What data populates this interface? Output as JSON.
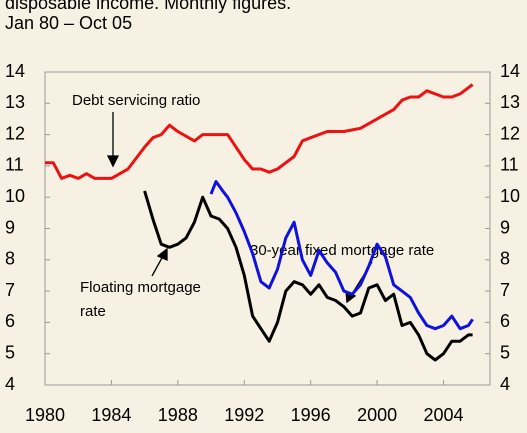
{
  "chart_data": {
    "type": "line",
    "subtitle": "disposable income. Monthly figures.",
    "date_range": "Jan 80 – Oct 05",
    "annotations": [
      "Debt servicing ratio",
      "30-year fixed mortgage rate",
      "Floating mortgage",
      "rate"
    ],
    "xlim": [
      1980,
      2006.8
    ],
    "xticks": [
      1980,
      1984,
      1988,
      1992,
      1996,
      2000,
      2004
    ],
    "ylim": [
      4,
      14
    ],
    "yticks": [
      4,
      5,
      6,
      7,
      8,
      9,
      10,
      11,
      12,
      13,
      14
    ],
    "y2lim": [
      4,
      14
    ],
    "y2ticks": [
      4,
      5,
      6,
      7,
      8,
      9,
      10,
      11,
      12,
      13,
      14
    ],
    "grid": false,
    "series": [
      {
        "name": "Debt servicing ratio",
        "color": "#ee1111",
        "x": [
          1980,
          1980.5,
          1981,
          1981.5,
          1982,
          1982.5,
          1983,
          1984,
          1985,
          1986,
          1986.5,
          1987,
          1987.5,
          1988,
          1989,
          1989.5,
          1990,
          1991,
          1991.5,
          1992,
          1992.5,
          1993,
          1993.5,
          1994,
          1995,
          1995.5,
          1996,
          1997,
          1998,
          1999,
          2000,
          2001,
          2001.5,
          2002,
          2002.5,
          2003,
          2003.5,
          2004,
          2004.5,
          2005,
          2005.5,
          2005.75
        ],
        "values": [
          11.1,
          11.1,
          10.6,
          10.7,
          10.6,
          10.75,
          10.6,
          10.6,
          10.9,
          11.6,
          11.9,
          12.0,
          12.3,
          12.1,
          11.8,
          12.0,
          12.0,
          12.0,
          11.6,
          11.2,
          10.9,
          10.9,
          10.8,
          10.9,
          11.3,
          11.8,
          11.9,
          12.1,
          12.1,
          12.2,
          12.5,
          12.8,
          13.1,
          13.2,
          13.2,
          13.4,
          13.3,
          13.2,
          13.2,
          13.3,
          13.5,
          13.6
        ]
      },
      {
        "name": "Floating mortgage rate",
        "color": "#000000",
        "x": [
          1986,
          1986.5,
          1987,
          1987.5,
          1988,
          1988.5,
          1989,
          1989.5,
          1990,
          1990.5,
          1991,
          1991.5,
          1992,
          1992.5,
          1993,
          1993.5,
          1994,
          1994.5,
          1995,
          1995.5,
          1996,
          1996.5,
          1997,
          1997.5,
          1998,
          1998.5,
          1999,
          1999.5,
          2000,
          2000.5,
          2001,
          2001.5,
          2002,
          2002.5,
          2003,
          2003.5,
          2004,
          2004.5,
          2005,
          2005.5,
          2005.75
        ],
        "values": [
          10.2,
          9.3,
          8.5,
          8.4,
          8.5,
          8.7,
          9.2,
          10.0,
          9.4,
          9.3,
          9.0,
          8.4,
          7.5,
          6.2,
          5.8,
          5.4,
          6.0,
          7.0,
          7.3,
          7.2,
          6.9,
          7.2,
          6.8,
          6.7,
          6.5,
          6.2,
          6.3,
          7.1,
          7.2,
          6.7,
          6.9,
          5.9,
          6.0,
          5.6,
          5.0,
          4.8,
          5.0,
          5.4,
          5.4,
          5.6,
          5.6
        ]
      },
      {
        "name": "30-year fixed mortgage rate",
        "color": "#1111dd",
        "x": [
          1990,
          1990.3,
          1990.7,
          1991,
          1991.5,
          1992,
          1992.5,
          1993,
          1993.5,
          1994,
          1994.5,
          1995,
          1995.5,
          1996,
          1996.5,
          1997,
          1997.5,
          1998,
          1998.5,
          1999,
          1999.5,
          2000,
          2000.5,
          2001,
          2001.5,
          2002,
          2002.5,
          2003,
          2003.5,
          2004,
          2004.5,
          2005,
          2005.5,
          2005.75
        ],
        "values": [
          10.1,
          10.5,
          10.2,
          10.0,
          9.5,
          8.9,
          8.2,
          7.3,
          7.1,
          7.7,
          8.7,
          9.2,
          8.0,
          7.5,
          8.3,
          7.9,
          7.6,
          7.0,
          6.9,
          7.2,
          7.8,
          8.5,
          8.1,
          7.2,
          7.0,
          6.8,
          6.3,
          5.9,
          5.8,
          5.9,
          6.2,
          5.8,
          5.9,
          6.1
        ]
      }
    ]
  }
}
